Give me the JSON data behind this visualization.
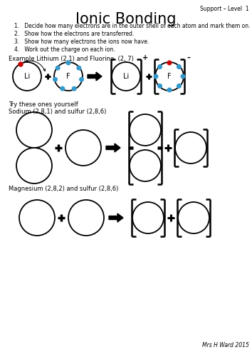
{
  "title": "Ionic Bonding",
  "support_label": "Support – Level  1",
  "instructions": [
    "Decide how many electrons are in the outer shell of each atom and mark them on.",
    "Show how the electrons are transferred.",
    "Show how many electrons the ions now have.",
    "Work out the charge on each ion."
  ],
  "example_label": "Example Lithium (2,1) and Fluorine  (2, 7)",
  "try_label": "Try these ones yourself",
  "sodium_label": "Sodium (2,8,1) and sulfur (2,8,6)",
  "magnesium_label": "Magnesium (2,8,2) and sulfur (2,8,6)",
  "footer": "Mrs H Ward 2015",
  "bg_color": "#ffffff",
  "electron_red": "#cc0000",
  "electron_blue": "#3399cc",
  "text_color": "#000000"
}
